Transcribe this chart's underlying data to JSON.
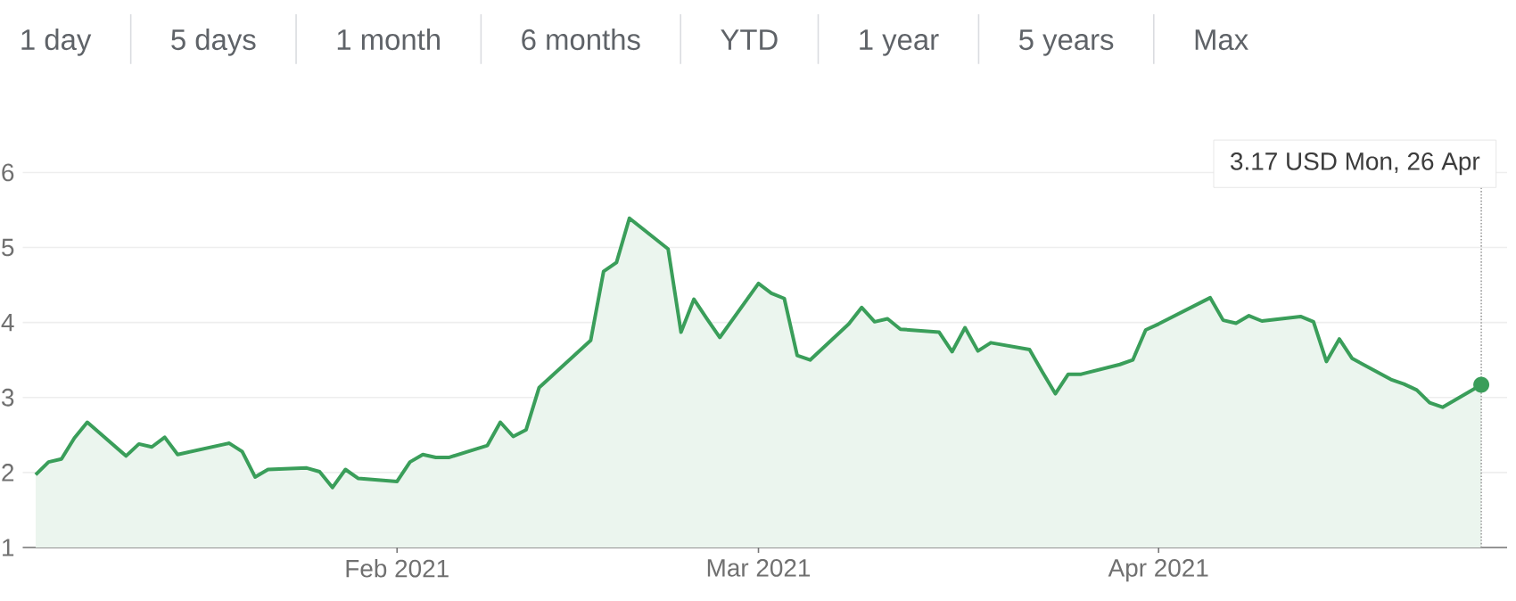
{
  "chart_data": {
    "type": "area",
    "x": [
      "2021-01-04",
      "2021-01-05",
      "2021-01-06",
      "2021-01-07",
      "2021-01-08",
      "2021-01-11",
      "2021-01-12",
      "2021-01-13",
      "2021-01-14",
      "2021-01-15",
      "2021-01-19",
      "2021-01-20",
      "2021-01-21",
      "2021-01-22",
      "2021-01-25",
      "2021-01-26",
      "2021-01-27",
      "2021-01-28",
      "2021-01-29",
      "2021-02-01",
      "2021-02-02",
      "2021-02-03",
      "2021-02-04",
      "2021-02-05",
      "2021-02-08",
      "2021-02-09",
      "2021-02-10",
      "2021-02-11",
      "2021-02-12",
      "2021-02-16",
      "2021-02-17",
      "2021-02-18",
      "2021-02-19",
      "2021-02-22",
      "2021-02-23",
      "2021-02-24",
      "2021-02-25",
      "2021-02-26",
      "2021-03-01",
      "2021-03-02",
      "2021-03-03",
      "2021-03-04",
      "2021-03-05",
      "2021-03-08",
      "2021-03-09",
      "2021-03-10",
      "2021-03-11",
      "2021-03-12",
      "2021-03-15",
      "2021-03-16",
      "2021-03-17",
      "2021-03-18",
      "2021-03-19",
      "2021-03-22",
      "2021-03-23",
      "2021-03-24",
      "2021-03-25",
      "2021-03-26",
      "2021-03-29",
      "2021-03-30",
      "2021-03-31",
      "2021-04-01",
      "2021-04-05",
      "2021-04-06",
      "2021-04-07",
      "2021-04-08",
      "2021-04-09",
      "2021-04-12",
      "2021-04-13",
      "2021-04-14",
      "2021-04-15",
      "2021-04-16",
      "2021-04-19",
      "2021-04-20",
      "2021-04-21",
      "2021-04-22",
      "2021-04-23",
      "2021-04-26"
    ],
    "series": [
      {
        "color": "#3a9e5a",
        "values": [
          1.97,
          2.14,
          2.18,
          2.46,
          2.67,
          2.22,
          2.38,
          2.34,
          2.47,
          2.24,
          2.39,
          2.28,
          1.94,
          2.04,
          2.06,
          2.01,
          1.8,
          2.04,
          1.92,
          1.88,
          2.14,
          2.24,
          2.2,
          2.2,
          2.36,
          2.67,
          2.48,
          2.57,
          3.13,
          3.76,
          4.68,
          4.8,
          5.39,
          4.98,
          3.87,
          4.31,
          4.05,
          3.8,
          4.52,
          4.39,
          4.32,
          3.56,
          3.5,
          3.98,
          4.2,
          4.01,
          4.05,
          3.91,
          3.87,
          3.61,
          3.93,
          3.62,
          3.73,
          3.64,
          3.34,
          3.05,
          3.31,
          3.31,
          3.44,
          3.5,
          3.9,
          3.98,
          4.33,
          4.03,
          3.99,
          4.09,
          4.02,
          4.08,
          4.01,
          3.48,
          3.78,
          3.52,
          3.24,
          3.18,
          3.1,
          2.93,
          2.87,
          3.17
        ]
      }
    ],
    "xlim": [
      "2021-01-03",
      "2021-04-28"
    ],
    "xticks": [
      {
        "value": "2021-02-01",
        "label": "Feb 2021"
      },
      {
        "value": "2021-03-01",
        "label": "Mar 2021"
      },
      {
        "value": "2021-04-01",
        "label": "Apr 2021"
      }
    ],
    "ylim": [
      1,
      6.2
    ],
    "yticks": [
      1,
      2,
      3,
      4,
      5,
      6
    ],
    "grid": "y",
    "marker": "none",
    "ref_lines": [
      {
        "axis": "x",
        "value": "2021-04-26",
        "line_style": "dotted",
        "color": "#9e9e9e"
      }
    ],
    "annotations": [
      "1 day",
      "5 days",
      "1 month",
      "6 months",
      "YTD",
      "1 year",
      "5 years",
      "Max",
      "3.17 USD  Mon, 26 Apr"
    ]
  }
}
